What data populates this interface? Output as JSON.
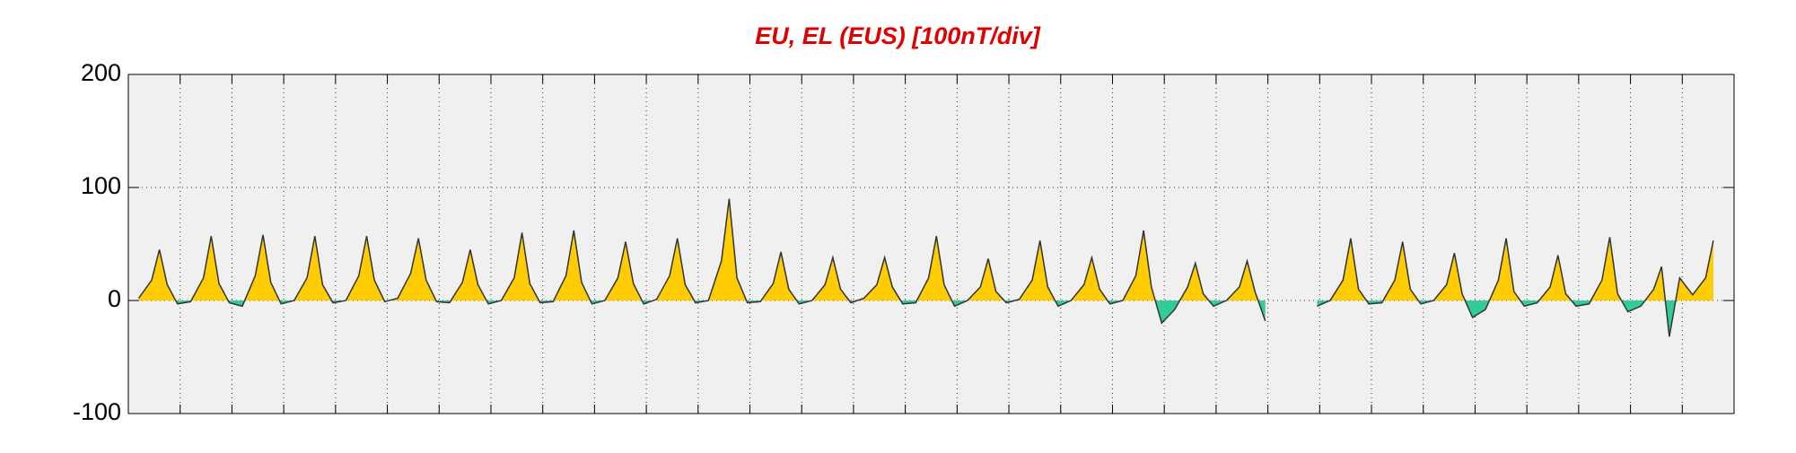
{
  "chart_data": {
    "type": "area-line",
    "title": "EU, EL (EUS)  [100nT/div]",
    "xlim": [
      0,
      31
    ],
    "xticks": [
      1,
      2,
      3,
      4,
      5,
      6,
      7,
      8,
      9,
      10,
      11,
      12,
      13,
      14,
      15,
      16,
      17,
      18,
      19,
      20,
      21,
      22,
      23,
      24,
      25,
      26,
      27,
      28,
      29,
      30
    ],
    "ylim": [
      -100,
      200
    ],
    "yticks": [
      -100,
      0,
      100,
      200
    ],
    "grid": true,
    "line_color": "#333333",
    "positive_color": "#ffcc00",
    "negative_color": "#33cc99",
    "x": [
      0.2,
      0.45,
      0.6,
      0.75,
      0.95,
      1.2,
      1.45,
      1.6,
      1.75,
      1.95,
      2.2,
      2.45,
      2.6,
      2.75,
      2.95,
      3.2,
      3.45,
      3.6,
      3.75,
      3.95,
      4.2,
      4.45,
      4.6,
      4.75,
      4.95,
      5.2,
      5.45,
      5.6,
      5.75,
      5.95,
      6.2,
      6.45,
      6.6,
      6.75,
      6.95,
      7.2,
      7.45,
      7.6,
      7.75,
      7.95,
      8.2,
      8.45,
      8.6,
      8.75,
      8.95,
      9.2,
      9.45,
      9.6,
      9.75,
      9.95,
      10.2,
      10.45,
      10.6,
      10.75,
      10.95,
      11.2,
      11.45,
      11.6,
      11.75,
      11.95,
      12.2,
      12.45,
      12.6,
      12.75,
      12.95,
      13.2,
      13.45,
      13.6,
      13.75,
      13.95,
      14.2,
      14.45,
      14.6,
      14.75,
      14.95,
      15.2,
      15.45,
      15.6,
      15.75,
      15.95,
      16.2,
      16.45,
      16.6,
      16.75,
      16.95,
      17.2,
      17.45,
      17.6,
      17.75,
      17.95,
      18.2,
      18.45,
      18.6,
      18.75,
      18.95,
      19.2,
      19.45,
      19.6,
      19.75,
      19.95,
      20.2,
      20.45,
      20.6,
      20.75,
      20.95,
      21.2,
      21.45,
      21.6,
      21.75,
      21.95,
      22.2,
      22.45,
      22.6,
      22.75,
      22.95,
      23.2,
      23.45,
      23.6,
      23.75,
      23.95,
      24.2,
      24.45,
      24.6,
      24.75,
      24.95,
      25.2,
      25.45,
      25.6,
      25.75,
      25.95,
      26.2,
      26.45,
      26.6,
      26.75,
      26.95,
      27.2,
      27.45,
      27.6,
      27.75,
      27.95,
      28.2,
      28.45,
      28.6,
      28.75,
      28.95,
      29.2,
      29.45,
      29.6,
      29.75,
      29.95,
      30.2,
      30.45,
      30.6
    ],
    "values": [
      2,
      18,
      45,
      14,
      -3,
      -1,
      20,
      57,
      15,
      -2,
      -5,
      22,
      58,
      16,
      -3,
      0,
      20,
      57,
      14,
      -2,
      0,
      22,
      57,
      18,
      -1,
      2,
      24,
      55,
      18,
      -1,
      -2,
      16,
      45,
      14,
      -3,
      0,
      20,
      60,
      15,
      -2,
      -1,
      22,
      62,
      16,
      -3,
      0,
      20,
      52,
      15,
      -3,
      1,
      22,
      55,
      14,
      -2,
      0,
      35,
      90,
      20,
      -2,
      -1,
      15,
      43,
      10,
      -3,
      0,
      14,
      38,
      10,
      -2,
      2,
      14,
      38,
      12,
      -3,
      -2,
      20,
      57,
      14,
      -5,
      0,
      12,
      37,
      8,
      -2,
      1,
      18,
      53,
      12,
      -5,
      0,
      14,
      38,
      10,
      -3,
      0,
      22,
      62,
      12,
      -20,
      -8,
      12,
      33,
      6,
      -5,
      0,
      12,
      35,
      8,
      -18,
      null,
      null,
      null,
      null,
      -5,
      0,
      18,
      55,
      10,
      -3,
      -2,
      18,
      52,
      10,
      -3,
      0,
      14,
      42,
      6,
      -15,
      -8,
      18,
      55,
      8,
      -5,
      -2,
      12,
      40,
      6,
      -5,
      -3,
      18,
      56,
      6,
      -10,
      -5,
      10,
      30,
      -32,
      20,
      5,
      20,
      53
    ]
  }
}
